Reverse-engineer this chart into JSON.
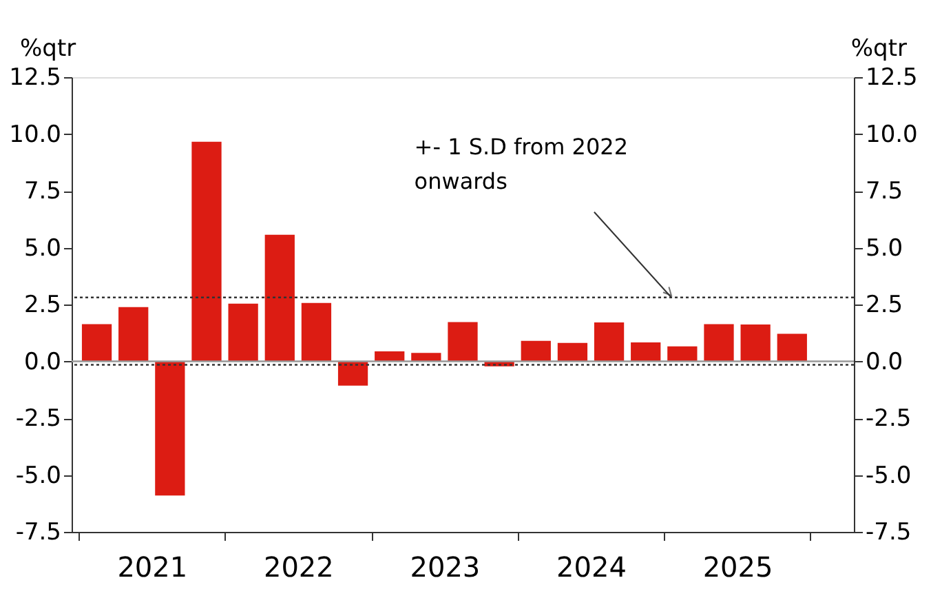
{
  "chart_data": {
    "type": "bar",
    "x": [
      2021.125,
      2021.375,
      2021.625,
      2021.875,
      2022.125,
      2022.375,
      2022.625,
      2022.875,
      2023.125,
      2023.375,
      2023.625,
      2023.875,
      2024.125,
      2024.375,
      2024.625,
      2024.875,
      2025.125,
      2025.375,
      2025.625,
      2025.875
    ],
    "values": [
      1.64,
      2.39,
      -5.9,
      9.66,
      2.54,
      5.57,
      2.57,
      -1.07,
      0.44,
      0.37,
      1.73,
      -0.22,
      0.9,
      0.81,
      1.71,
      0.83,
      0.66,
      1.64,
      1.62,
      1.21
    ],
    "color": "#dc1c13",
    "ylabel": "%qtr",
    "y2label": "%qtr",
    "xlim": [
      2021,
      2026.25
    ],
    "xticks": [
      {
        "value": 2021,
        "label": null
      },
      {
        "value": 2021.5,
        "label": "2021"
      },
      {
        "value": 2022,
        "label": null
      },
      {
        "value": 2022.5,
        "label": "2022"
      },
      {
        "value": 2023,
        "label": null
      },
      {
        "value": 2023.5,
        "label": "2023"
      },
      {
        "value": 2024,
        "label": null
      },
      {
        "value": 2024.5,
        "label": "2024"
      },
      {
        "value": 2025,
        "label": null
      },
      {
        "value": 2025.5,
        "label": "2025"
      },
      {
        "value": 2026,
        "label": null
      }
    ],
    "ylim": [
      -7.5,
      12.5
    ],
    "yticks": [
      {
        "value": -7.5,
        "label": "-7.5"
      },
      {
        "value": -5,
        "label": "-5.0"
      },
      {
        "value": -2.5,
        "label": "-2.5"
      },
      {
        "value": 0,
        "label": "0.0"
      },
      {
        "value": 2.5,
        "label": "2.5"
      },
      {
        "value": 5,
        "label": "5.0"
      },
      {
        "value": 7.5,
        "label": "7.5"
      },
      {
        "value": 10,
        "label": "10.0"
      },
      {
        "value": 12.5,
        "label": "12.5"
      }
    ],
    "y2lim": [
      -7.5,
      12.5
    ],
    "y2ticks": [
      {
        "value": -7.5,
        "label": "-7.5"
      },
      {
        "value": -5,
        "label": "-5.0"
      },
      {
        "value": -2.5,
        "label": "-2.5"
      },
      {
        "value": 0,
        "label": "0.0"
      },
      {
        "value": 2.5,
        "label": "2.5"
      },
      {
        "value": 5,
        "label": "5.0"
      },
      {
        "value": 7.5,
        "label": "7.5"
      },
      {
        "value": 10,
        "label": "10.0"
      },
      {
        "value": 12.5,
        "label": "12.5"
      }
    ],
    "ref_lines": [
      {
        "axis": "y",
        "value": 2.81,
        "color": "#333333",
        "line_style": "dotted"
      },
      {
        "axis": "y",
        "value": -0.15,
        "color": "#333333",
        "line_style": "dotted"
      },
      {
        "axis": "y",
        "value": 0,
        "color": "#999999",
        "line_style": "solid"
      }
    ],
    "annotations": [
      {
        "text": "+- 1 S.D from 2022 onwards",
        "x": 2025.05,
        "y": 2.81
      }
    ],
    "grid": false
  }
}
